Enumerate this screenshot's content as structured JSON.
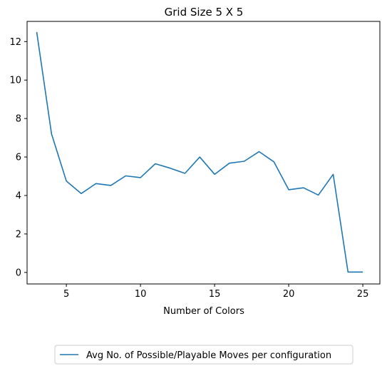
{
  "chart_data": {
    "type": "line",
    "title": "Grid Size 5 X 5",
    "xlabel": "Number of Colors",
    "ylabel": "",
    "xlim": [
      2.35,
      26.15
    ],
    "ylim": [
      -0.6,
      13.05
    ],
    "xticks": [
      5,
      10,
      15,
      20,
      25
    ],
    "yticks": [
      0,
      2,
      4,
      6,
      8,
      10,
      12
    ],
    "grid": false,
    "legend_position": "bottom-center",
    "series": [
      {
        "name": "Avg No. of Possible/Playable Moves per configuration",
        "color": "#1f77b4",
        "x": [
          3,
          4,
          5,
          6,
          7,
          8,
          9,
          10,
          11,
          12,
          13,
          14,
          15,
          16,
          17,
          18,
          19,
          20,
          21,
          22,
          23,
          24,
          25
        ],
        "y": [
          12.5,
          7.2,
          4.75,
          4.1,
          4.62,
          4.52,
          5.02,
          4.93,
          5.65,
          5.42,
          5.15,
          6.0,
          5.1,
          5.68,
          5.78,
          6.28,
          5.75,
          4.3,
          4.4,
          4.02,
          5.1,
          0.02,
          0.02
        ]
      }
    ]
  }
}
